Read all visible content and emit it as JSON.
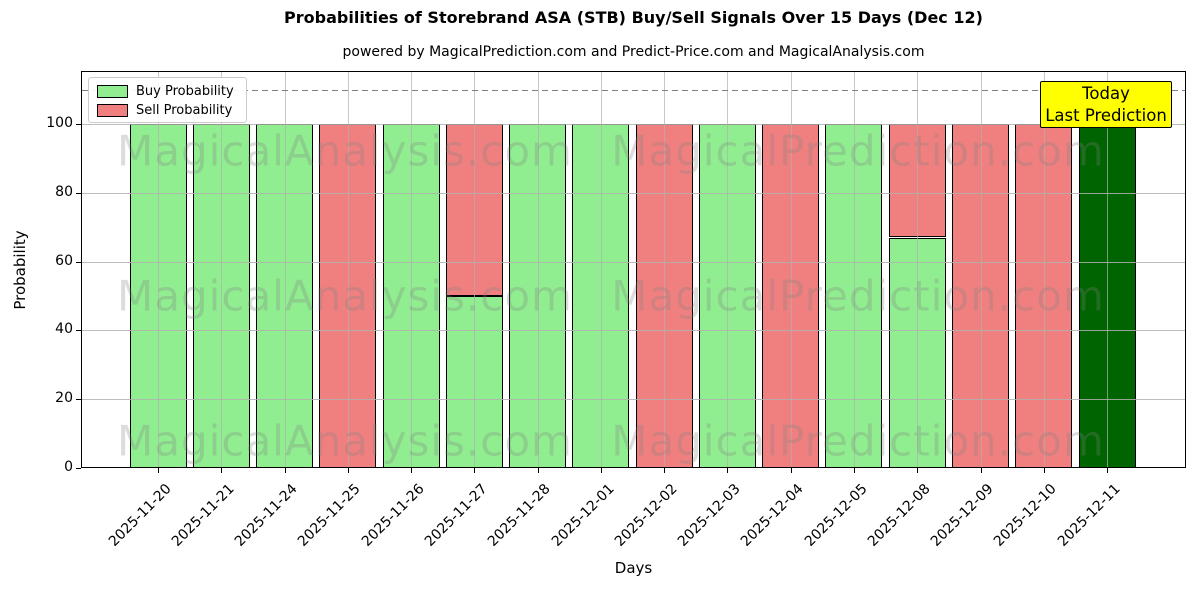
{
  "chart_data": {
    "type": "bar",
    "stacked": true,
    "title": "Probabilities of Storebrand ASA (STB) Buy/Sell Signals Over 15 Days (Dec 12)",
    "subtitle": "powered by MagicalPrediction.com and Predict-Price.com and MagicalAnalysis.com",
    "xlabel": "Days",
    "ylabel": "Probability",
    "ylim": [
      0,
      115.4
    ],
    "yticks": [
      0,
      20,
      40,
      60,
      80,
      100
    ],
    "grid": true,
    "threshold_line": {
      "y": 110,
      "style": "dashed",
      "color": "#808080"
    },
    "categories": [
      "2025-11-20",
      "2025-11-21",
      "2025-11-24",
      "2025-11-25",
      "2025-11-26",
      "2025-11-27",
      "2025-11-28",
      "2025-12-01",
      "2025-12-02",
      "2025-12-03",
      "2025-12-04",
      "2025-12-05",
      "2025-12-08",
      "2025-12-09",
      "2025-12-10",
      "2025-12-11"
    ],
    "series": [
      {
        "name": "Buy Probability",
        "values": [
          100,
          100,
          100,
          0,
          100,
          50,
          100,
          100,
          0,
          100,
          0,
          100,
          67,
          0,
          0,
          100
        ]
      },
      {
        "name": "Sell Probability",
        "values": [
          0,
          0,
          0,
          100,
          0,
          50,
          0,
          0,
          100,
          0,
          100,
          0,
          33,
          100,
          100,
          0
        ]
      }
    ],
    "today_index": 15,
    "legend": {
      "position": "top-left",
      "entries": [
        {
          "label": "Buy Probability",
          "color": "#90ee90"
        },
        {
          "label": "Sell Probability",
          "color": "#f08080"
        }
      ]
    },
    "annotation_box": {
      "lines": [
        "Today",
        "Last Prediction"
      ],
      "bg": "#ffff00",
      "border": "#000000"
    },
    "watermarks": {
      "left": "MagicalAnalysis.com",
      "right": "MagicalPrediction.com"
    },
    "colors": {
      "buy": "#90ee90",
      "sell": "#f08080",
      "today": "#006400",
      "edge": "#000000",
      "grid": "#b0b0b0"
    }
  }
}
